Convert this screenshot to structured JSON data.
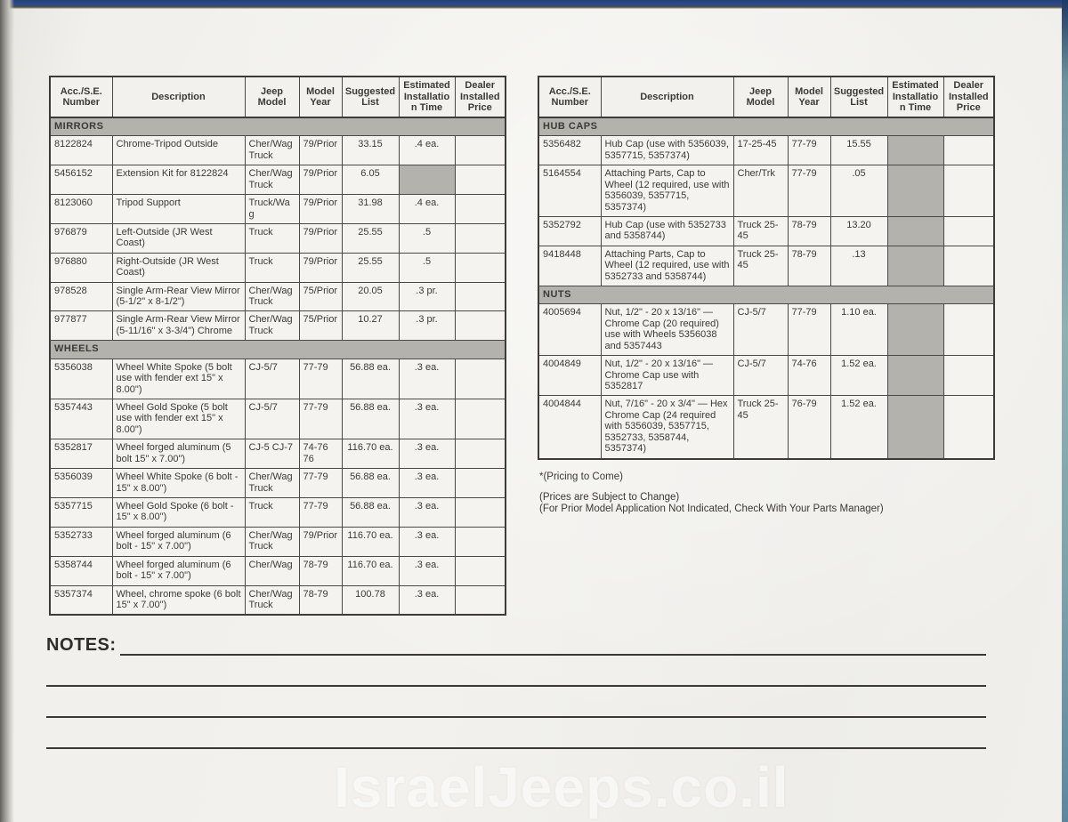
{
  "columns": [
    "Acc./S.E. Number",
    "Description",
    "Jeep Model",
    "Model Year",
    "Suggested List",
    "Estimated Installation Time",
    "Dealer Installed Price"
  ],
  "left_table": {
    "sections": [
      {
        "title": "MIRRORS",
        "rows": [
          {
            "num": "8122824",
            "desc": "Chrome-Tripod Outside",
            "model": "Cher/Wag Truck",
            "year": "79/Prior",
            "list": "33.15",
            "time": ".4 ea.",
            "price": "",
            "shaded": false
          },
          {
            "num": "5456152",
            "desc": "Extension Kit for 8122824",
            "model": "Cher/Wag Truck",
            "year": "79/Prior",
            "list": "6.05",
            "time": "",
            "price": "",
            "shaded": true
          },
          {
            "num": "8123060",
            "desc": "Tripod Support",
            "model": "Truck/Wag",
            "year": "79/Prior",
            "list": "31.98",
            "time": ".4 ea.",
            "price": "",
            "shaded": false
          },
          {
            "num": "976879",
            "desc": "Left-Outside (JR West Coast)",
            "model": "Truck",
            "year": "79/Prior",
            "list": "25.55",
            "time": ".5",
            "price": "",
            "shaded": false
          },
          {
            "num": "976880",
            "desc": "Right-Outside (JR West Coast)",
            "model": "Truck",
            "year": "79/Prior",
            "list": "25.55",
            "time": ".5",
            "price": "",
            "shaded": false
          },
          {
            "num": "978528",
            "desc": "Single Arm-Rear View Mirror (5-1/2\" x 8-1/2\")",
            "model": "Cher/Wag Truck",
            "year": "75/Prior",
            "list": "20.05",
            "time": ".3 pr.",
            "price": "",
            "shaded": false
          },
          {
            "num": "977877",
            "desc": "Single Arm-Rear View Mirror (5-11/16\" x 3-3/4\") Chrome",
            "model": "Cher/Wag Truck",
            "year": "75/Prior",
            "list": "10.27",
            "time": ".3 pr.",
            "price": "",
            "shaded": false
          }
        ]
      },
      {
        "title": "WHEELS",
        "rows": [
          {
            "num": "5356038",
            "desc": "Wheel White Spoke (5 bolt use with fender ext 15\" x 8.00\")",
            "model": "CJ-5/7",
            "year": "77-79",
            "list": "56.88 ea.",
            "time": ".3 ea.",
            "price": "",
            "shaded": false
          },
          {
            "num": "5357443",
            "desc": "Wheel Gold Spoke (5 bolt use with fender ext 15\" x 8.00\")",
            "model": "CJ-5/7",
            "year": "77-79",
            "list": "56.88 ea.",
            "time": ".3 ea.",
            "price": "",
            "shaded": false
          },
          {
            "num": "5352817",
            "desc": "Wheel forged aluminum (5 bolt 15\" x 7.00\")",
            "model": "CJ-5 CJ-7",
            "year": "74-76 76",
            "list": "116.70 ea.",
            "time": ".3 ea.",
            "price": "",
            "shaded": false
          },
          {
            "num": "5356039",
            "desc": "Wheel White Spoke (6 bolt - 15\" x 8.00\")",
            "model": "Cher/Wag Truck",
            "year": "77-79",
            "list": "56.88 ea.",
            "time": ".3 ea.",
            "price": "",
            "shaded": false
          },
          {
            "num": "5357715",
            "desc": "Wheel Gold Spoke (6 bolt - 15\" x 8.00\")",
            "model": "Truck",
            "year": "77-79",
            "list": "56.88 ea.",
            "time": ".3 ea.",
            "price": "",
            "shaded": false
          },
          {
            "num": "5352733",
            "desc": "Wheel forged aluminum (6 bolt - 15\" x 7.00\")",
            "model": "Cher/Wag Truck",
            "year": "79/Prior",
            "list": "116.70 ea.",
            "time": ".3 ea.",
            "price": "",
            "shaded": false
          },
          {
            "num": "5358744",
            "desc": "Wheel forged aluminum (6 bolt - 15\" x 7.00\")",
            "model": "Cher/Wag",
            "year": "78-79",
            "list": "116.70 ea.",
            "time": ".3 ea.",
            "price": "",
            "shaded": false
          },
          {
            "num": "5357374",
            "desc": "Wheel, chrome spoke (6 bolt 15\" x 7.00\")",
            "model": "Cher/Wag Truck",
            "year": "78-79",
            "list": "100.78",
            "time": ".3 ea.",
            "price": "",
            "shaded": false
          }
        ]
      }
    ]
  },
  "right_table": {
    "sections": [
      {
        "title": "HUB CAPS",
        "rows": [
          {
            "num": "5356482",
            "desc": "Hub Cap (use with 5356039, 5357715, 5357374)",
            "model": "17-25-45",
            "model_bottom": true,
            "year": "77-79",
            "list": "15.55",
            "time": "",
            "price": "",
            "shaded": true
          },
          {
            "num": "5164554",
            "desc": "Attaching Parts, Cap to Wheel (12 required, use with 5356039, 5357715, 5357374)",
            "model": "Cher/Trk",
            "year": "77-79",
            "list": ".05",
            "time": "",
            "price": "",
            "shaded": true
          },
          {
            "num": "5352792",
            "desc": "Hub Cap (use with 5352733 and 5358744)",
            "model": "Truck 25-45",
            "year": "78-79",
            "list": "13.20",
            "time": "",
            "price": "",
            "shaded": true
          },
          {
            "num": "9418448",
            "desc": "Attaching Parts, Cap to Wheel (12 required, use with 5352733 and 5358744)",
            "model": "Truck 25-45",
            "year": "78-79",
            "list": ".13",
            "time": "",
            "price": "",
            "shaded": true
          }
        ]
      },
      {
        "title": "NUTS",
        "rows": [
          {
            "num": "4005694",
            "desc": "Nut, 1/2\" - 20 x 13/16\" — Chrome Cap (20 required) use with Wheels 5356038 and 5357443",
            "model": "CJ-5/7",
            "year": "77-79",
            "list": "1.10 ea.",
            "time": "",
            "price": "",
            "shaded": true
          },
          {
            "num": "4004849",
            "desc": "Nut, 1/2\" - 20 x 13/16\" — Chrome Cap use with 5352817",
            "model": "CJ-5/7",
            "year": "74-76",
            "list": "1.52 ea.",
            "time": "",
            "price": "",
            "shaded": true
          },
          {
            "num": "4004844",
            "desc": "Nut, 7/16\" - 20 x 3/4\" — Hex Chrome Cap (24 required with 5356039, 5357715, 5352733, 5358744, 5357374)",
            "model": "Truck 25-45",
            "year": "76-79",
            "list": "1.52 ea.",
            "time": "",
            "price": "",
            "shaded": true
          }
        ]
      }
    ]
  },
  "footnotes": [
    "*(Pricing to Come)",
    "(Prices are Subject to Change)",
    "(For Prior Model Application Not Indicated, Check With Your Parts Manager)"
  ],
  "notes": {
    "label": "NOTES:"
  },
  "watermark": "IsraelJeeps.co.il"
}
